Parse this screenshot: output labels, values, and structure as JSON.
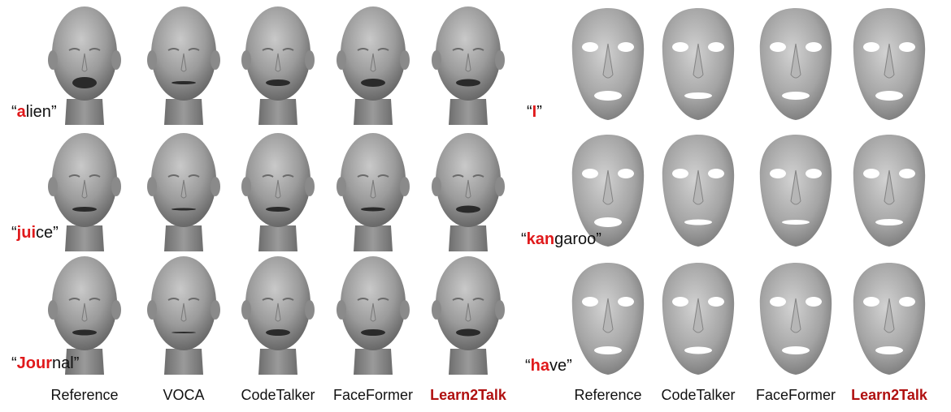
{
  "left_panel": {
    "columns": [
      "Reference",
      "VOCA",
      "CodeTalker",
      "FaceFormer",
      "Learn2Talk"
    ],
    "rows": [
      {
        "open_q": "“",
        "highlight": "a",
        "rest": "lien",
        "close_q": "”"
      },
      {
        "open_q": "“",
        "highlight": "jui",
        "rest": "ce",
        "close_q": "”"
      },
      {
        "open_q": "“",
        "highlight": "Jour",
        "rest": "nal",
        "close_q": "”"
      }
    ]
  },
  "right_panel": {
    "columns": [
      "Reference",
      "CodeTalker",
      "FaceFormer",
      "Learn2Talk"
    ],
    "rows": [
      {
        "open_q": "“",
        "highlight": "I",
        "rest": "",
        "close_q": "”"
      },
      {
        "open_q": "“",
        "highlight": "kan",
        "rest": "garoo",
        "close_q": "”"
      },
      {
        "open_q": "“",
        "highlight": "ha",
        "rest": "ve",
        "close_q": "”"
      }
    ]
  },
  "colors": {
    "highlight": "#e0191b",
    "method_ours": "#b01010",
    "mesh": "#9a9a9a"
  }
}
